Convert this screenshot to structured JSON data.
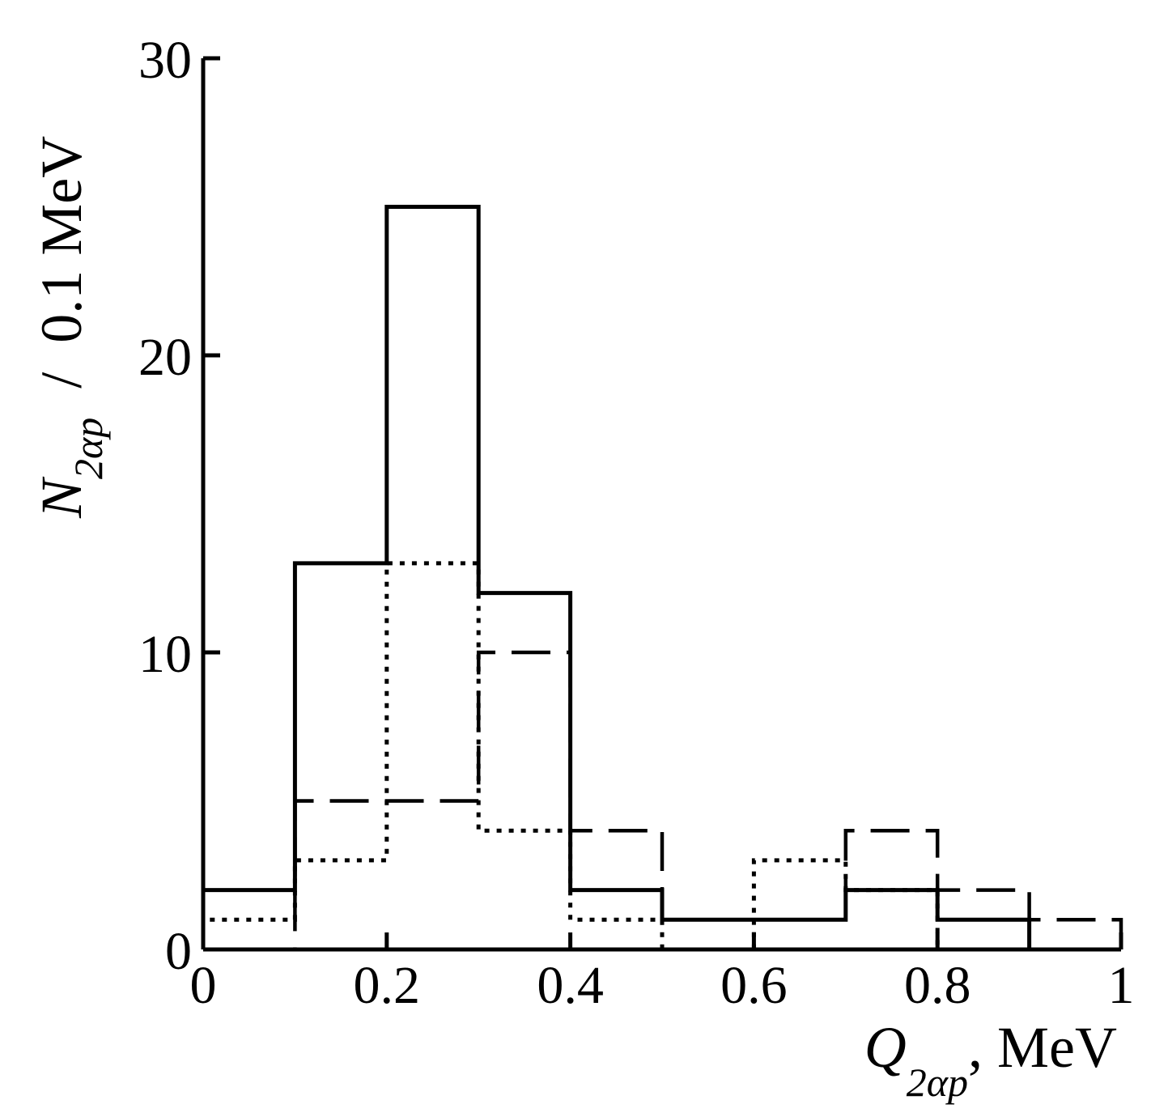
{
  "chart_data": {
    "type": "histogram",
    "title": "",
    "bin_edges": [
      0,
      0.1,
      0.2,
      0.3,
      0.4,
      0.5,
      0.6,
      0.7,
      0.8,
      0.9,
      1.0
    ],
    "series": [
      {
        "name": "solid",
        "style": "solid",
        "values": [
          2,
          13,
          25,
          12,
          2,
          1,
          1,
          2,
          1,
          0
        ]
      },
      {
        "name": "dashed",
        "style": "dashed",
        "values": [
          0,
          5,
          5,
          10,
          4,
          1,
          1,
          4,
          2,
          1
        ]
      },
      {
        "name": "dotted",
        "style": "dotted",
        "values": [
          1,
          3,
          13,
          4,
          1,
          0,
          3,
          2,
          0,
          0
        ]
      }
    ],
    "xlim": [
      0,
      1
    ],
    "ylim": [
      0,
      30
    ],
    "x_ticks": [
      0,
      0.2,
      0.4,
      0.6,
      0.8,
      1
    ],
    "x_tick_labels": [
      "0",
      "0.2",
      "0.4",
      "0.6",
      "0.8",
      "1"
    ],
    "y_ticks": [
      0,
      10,
      20,
      30
    ],
    "y_tick_labels": [
      "0",
      "10",
      "20",
      "30"
    ],
    "xlabel": {
      "main": "Q",
      "sub": "2αp",
      "rest": ", MeV"
    },
    "ylabel": {
      "main": "N",
      "sub": "2αp",
      "rest": "  /  0.1 MeV"
    },
    "grid": false,
    "color": "#000000"
  }
}
